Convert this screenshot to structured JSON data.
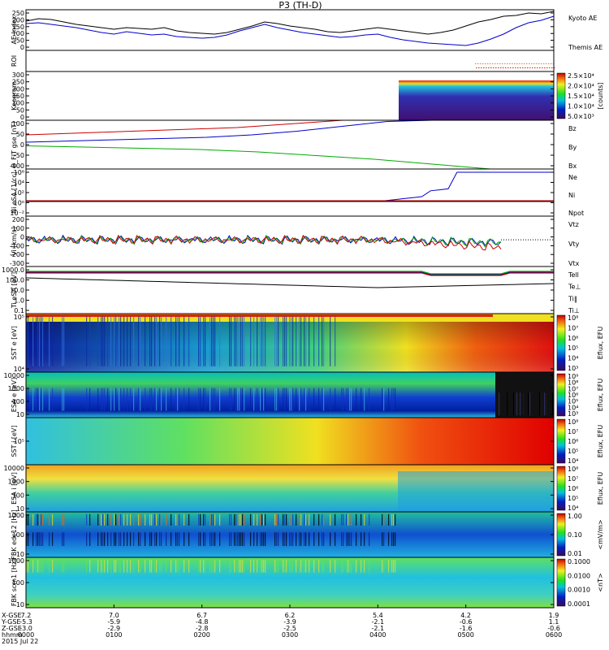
{
  "title": "P3 (TH-D)",
  "chart_data": [
    {
      "id": "ae",
      "type": "line",
      "ylabel": "AE Index",
      "ylim": [
        0,
        250
      ],
      "yticks": [
        "250",
        "200",
        "150",
        "100",
        "50",
        "0"
      ],
      "legend": [
        {
          "label": "Kyoto AE",
          "color": "#0000cc"
        },
        {
          "label": "Themis AE",
          "color": "#000000"
        }
      ],
      "series": [
        {
          "name": "Themis AE",
          "color": "#000000",
          "values": [
            180,
            195,
            190,
            175,
            160,
            150,
            140,
            130,
            140,
            135,
            130,
            140,
            120,
            110,
            105,
            100,
            110,
            130,
            150,
            175,
            165,
            150,
            140,
            130,
            115,
            110,
            120,
            130,
            140,
            130,
            120,
            110,
            100,
            110,
            125,
            150,
            175,
            190,
            210,
            215,
            230,
            225,
            240
          ]
        },
        {
          "name": "Kyoto AE",
          "color": "#0000cc",
          "values": [
            165,
            170,
            160,
            150,
            140,
            125,
            110,
            100,
            115,
            105,
            95,
            100,
            85,
            80,
            75,
            80,
            95,
            120,
            140,
            160,
            140,
            125,
            110,
            100,
            90,
            80,
            85,
            95,
            100,
            80,
            65,
            55,
            45,
            40,
            35,
            30,
            45,
            70,
            100,
            140,
            170,
            185,
            210
          ]
        }
      ]
    },
    {
      "id": "roi",
      "type": "line",
      "ylabel": "ROI"
    },
    {
      "id": "keogram",
      "type": "heatmap",
      "ylabel": "Keogram",
      "ylim": [
        0,
        300
      ],
      "yticks": [
        "300",
        "250",
        "200",
        "150",
        "100",
        "50",
        "0"
      ],
      "colorbar": {
        "label": "[counts]",
        "ticks": [
          "2.5×10⁴",
          "2.0×10⁴",
          "1.5×10⁴",
          "1.0×10⁴",
          "5.0×10³"
        ]
      }
    },
    {
      "id": "bfit",
      "type": "line",
      "ylabel": "B_FIT gse [nT]",
      "ylim": [
        -100,
        100
      ],
      "yticks": [
        "100",
        "50",
        "0",
        "-50",
        "-100"
      ],
      "legend": [
        {
          "label": "Bz",
          "color": "#cc0000"
        },
        {
          "label": "By",
          "color": "#00aa00"
        },
        {
          "label": "Bx",
          "color": "#0000cc"
        }
      ],
      "series": [
        {
          "name": "Bz",
          "color": "#cc0000",
          "values": [
            40,
            45,
            50,
            55,
            60,
            65,
            70,
            80,
            90,
            100
          ]
        },
        {
          "name": "By",
          "color": "#00aa00",
          "values": [
            -5,
            -10,
            -15,
            -20,
            -30,
            -45,
            -60,
            -80,
            -100
          ]
        },
        {
          "name": "Bx",
          "color": "#0000cc",
          "values": [
            10,
            15,
            20,
            25,
            30,
            40,
            55,
            75,
            95,
            100
          ]
        }
      ]
    },
    {
      "id": "ni",
      "type": "line",
      "ylabel": "Ni eSA [1/cc]",
      "yticks": [
        "10⁶",
        "10⁴",
        "10²",
        "10⁰",
        "10⁻²"
      ],
      "legend": [
        {
          "label": "Ne",
          "color": "#cc0000"
        },
        {
          "label": "Ni",
          "color": "#000000"
        },
        {
          "label": "Npot",
          "color": "#0000cc"
        }
      ]
    },
    {
      "id": "vi",
      "type": "line",
      "ylabel": "Vi [km/s]",
      "ylim": [
        -300,
        200
      ],
      "yticks": [
        "200",
        "100",
        "0",
        "-100",
        "-200",
        "-300"
      ],
      "legend": [
        {
          "label": "Vtz",
          "color": "#cc0000"
        },
        {
          "label": "Vty",
          "color": "#00aa00"
        },
        {
          "label": "Vtx",
          "color": "#0000cc"
        }
      ]
    },
    {
      "id": "ti",
      "type": "line",
      "ylabel": "Ti eSA [eV]",
      "yticks": [
        "1000.0",
        "100.0",
        "10.0",
        "1.0",
        "0.1"
      ],
      "legend": [
        {
          "label": "Tell",
          "color": "#000000"
        },
        {
          "label": "Te⊥",
          "color": "#cc0000"
        },
        {
          "label": "Ti‖",
          "color": "#00aa00"
        },
        {
          "label": "Ti⊥",
          "color": "#0000cc"
        }
      ]
    },
    {
      "id": "sst_e",
      "type": "heatmap",
      "ylabel": "SST e [eV]",
      "yticks": [
        "10⁵",
        "10⁴"
      ],
      "colorbar": {
        "label": "Eflux, EFU",
        "ticks": [
          "10⁸",
          "10⁷",
          "10⁶",
          "10⁵",
          "10⁴",
          "10³"
        ]
      }
    },
    {
      "id": "esa_e",
      "type": "heatmap",
      "ylabel": "ESA e [eV]",
      "yticks": [
        "10000",
        "1000",
        "100",
        "10"
      ],
      "colorbar": {
        "label": "Eflux, EFU",
        "ticks": [
          "10⁹",
          "10⁸",
          "10⁷",
          "10⁶",
          "10⁵",
          "10⁴",
          "10³"
        ]
      }
    },
    {
      "id": "sst_i",
      "type": "heatmap",
      "ylabel": "SST i [eV]",
      "yticks": [
        "10⁵"
      ],
      "colorbar": {
        "label": "Eflux, EFU",
        "ticks": [
          "10⁸",
          "10⁷",
          "10⁶",
          "10⁵",
          "10⁴"
        ]
      }
    },
    {
      "id": "esa_i",
      "type": "heatmap",
      "ylabel": "ESA i [eV]",
      "yticks": [
        "10000",
        "1000",
        "100",
        "10"
      ],
      "colorbar": {
        "label": "Eflux, EFU",
        "ticks": [
          "10⁸",
          "10⁷",
          "10⁶",
          "10⁵",
          "10⁴"
        ]
      }
    },
    {
      "id": "fbk_e",
      "type": "heatmap",
      "ylabel": "FBK edc12 [Hz]",
      "yticks": [
        "1000",
        "100",
        "10"
      ],
      "colorbar": {
        "label": "<mV/m>",
        "ticks": [
          "1.00",
          "0.10",
          "0.01"
        ]
      }
    },
    {
      "id": "fbk_b",
      "type": "heatmap",
      "ylabel": "FBK scm1 [Hz]",
      "yticks": [
        "1000",
        "100",
        "10"
      ],
      "colorbar": {
        "label": "<nT>",
        "ticks": [
          "0.1000",
          "0.0100",
          "0.0010",
          "0.0001"
        ]
      }
    }
  ],
  "x_axis": {
    "row_labels": [
      "X-GSE",
      "Y-GSE",
      "Z-GSE",
      "hhmm",
      "2015 Jul 22"
    ],
    "ticks": [
      {
        "x": "7.2",
        "y": "-5.3",
        "z": "-3.0",
        "t": "0000"
      },
      {
        "x": "7.0",
        "y": "-5.9",
        "z": "-2.9",
        "t": "0100"
      },
      {
        "x": "6.7",
        "y": "-4.8",
        "z": "-2.8",
        "t": "0200"
      },
      {
        "x": "6.2",
        "y": "-3.9",
        "z": "-2.5",
        "t": "0300"
      },
      {
        "x": "5.4",
        "y": "-2.1",
        "z": "-2.1",
        "t": "0400"
      },
      {
        "x": "4.2",
        "y": "-0.6",
        "z": "-1.6",
        "t": "0500"
      },
      {
        "x": "1.9",
        "y": "1.1",
        "z": "-0.6",
        "t": "0600"
      }
    ]
  }
}
